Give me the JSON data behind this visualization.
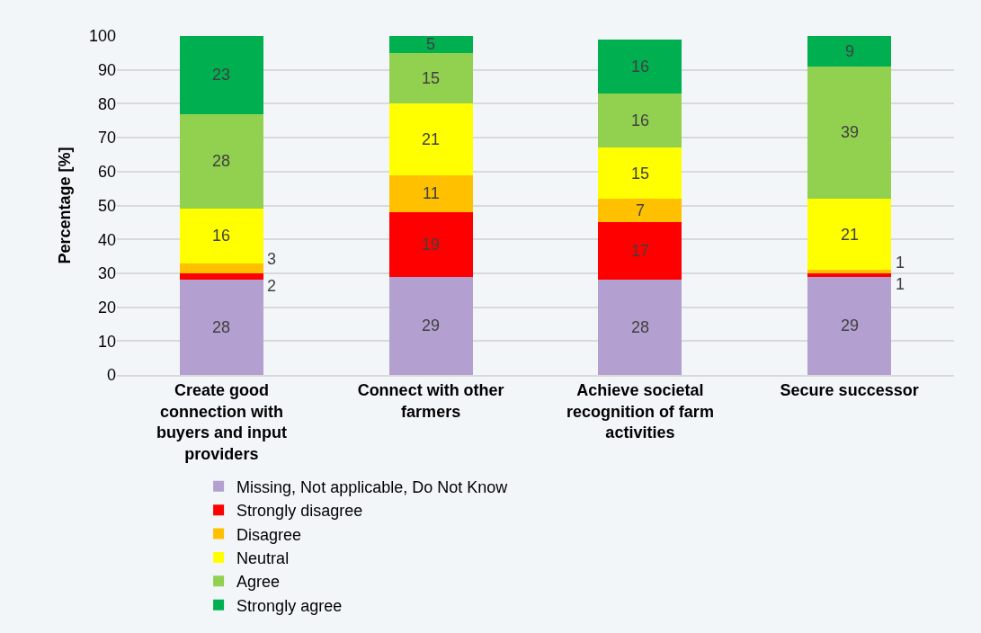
{
  "chart_data": {
    "type": "bar",
    "stacked": true,
    "ylabel": "Percentage [%]",
    "categories": [
      "Create good connection with buyers and input providers",
      "Connect with other farmers",
      "Achieve societal recognition of farm activities",
      "Secure successor"
    ],
    "series": [
      {
        "name": "Missing, Not applicable, Do Not Know",
        "color": "#b4a0d0",
        "values": [
          28,
          29,
          28,
          29
        ]
      },
      {
        "name": "Strongly disagree",
        "color": "#ff0000",
        "values": [
          2,
          19,
          17,
          1
        ]
      },
      {
        "name": "Disagree",
        "color": "#ffc000",
        "values": [
          3,
          11,
          7,
          1
        ]
      },
      {
        "name": "Neutral",
        "color": "#ffff00",
        "values": [
          16,
          21,
          15,
          21
        ]
      },
      {
        "name": "Agree",
        "color": "#92d050",
        "values": [
          28,
          15,
          16,
          39
        ]
      },
      {
        "name": "Strongly agree",
        "color": "#00b050",
        "values": [
          23,
          5,
          16,
          9
        ]
      }
    ],
    "ylim": [
      0,
      100
    ],
    "yticks": [
      0,
      10,
      20,
      30,
      40,
      50,
      60,
      70,
      80,
      90,
      100
    ],
    "grid": "y",
    "legend": "bottom",
    "data_labels": true
  }
}
